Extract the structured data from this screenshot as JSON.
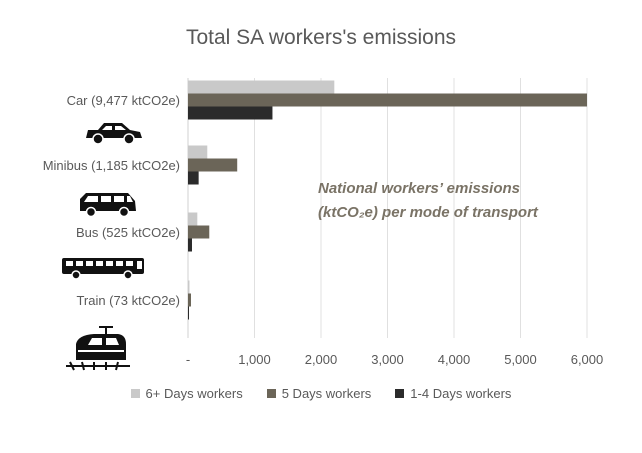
{
  "chart_data": {
    "type": "bar",
    "orientation": "horizontal",
    "title": "Total SA workers's emissions",
    "annotation": {
      "line1": "National workers’ emissions",
      "line2": "(ktCO₂e) per mode of transport"
    },
    "categories": [
      "Car (9,477 ktCO2e)",
      "Minibus (1,185 ktCO2e)",
      "Bus (525 ktCO2e)",
      "Train (73 ktCO2e)"
    ],
    "category_icons": [
      "car-icon",
      "minibus-icon",
      "bus-icon",
      "train-icon"
    ],
    "series": [
      {
        "name": "6+ Days workers",
        "color": "#c9c9c9",
        "values": [
          2200,
          290,
          140,
          22
        ]
      },
      {
        "name": "5 Days workers",
        "color": "#6b6558",
        "values": [
          6000,
          740,
          320,
          45
        ]
      },
      {
        "name": "1-4 Days workers",
        "color": "#2b2b2b",
        "values": [
          1270,
          160,
          60,
          6
        ]
      }
    ],
    "xlim": [
      0,
      6000
    ],
    "xticks": [
      "-",
      "1,000",
      "2,000",
      "3,000",
      "4,000",
      "5,000",
      "6,000"
    ],
    "grid": true,
    "legend_position": "bottom"
  }
}
